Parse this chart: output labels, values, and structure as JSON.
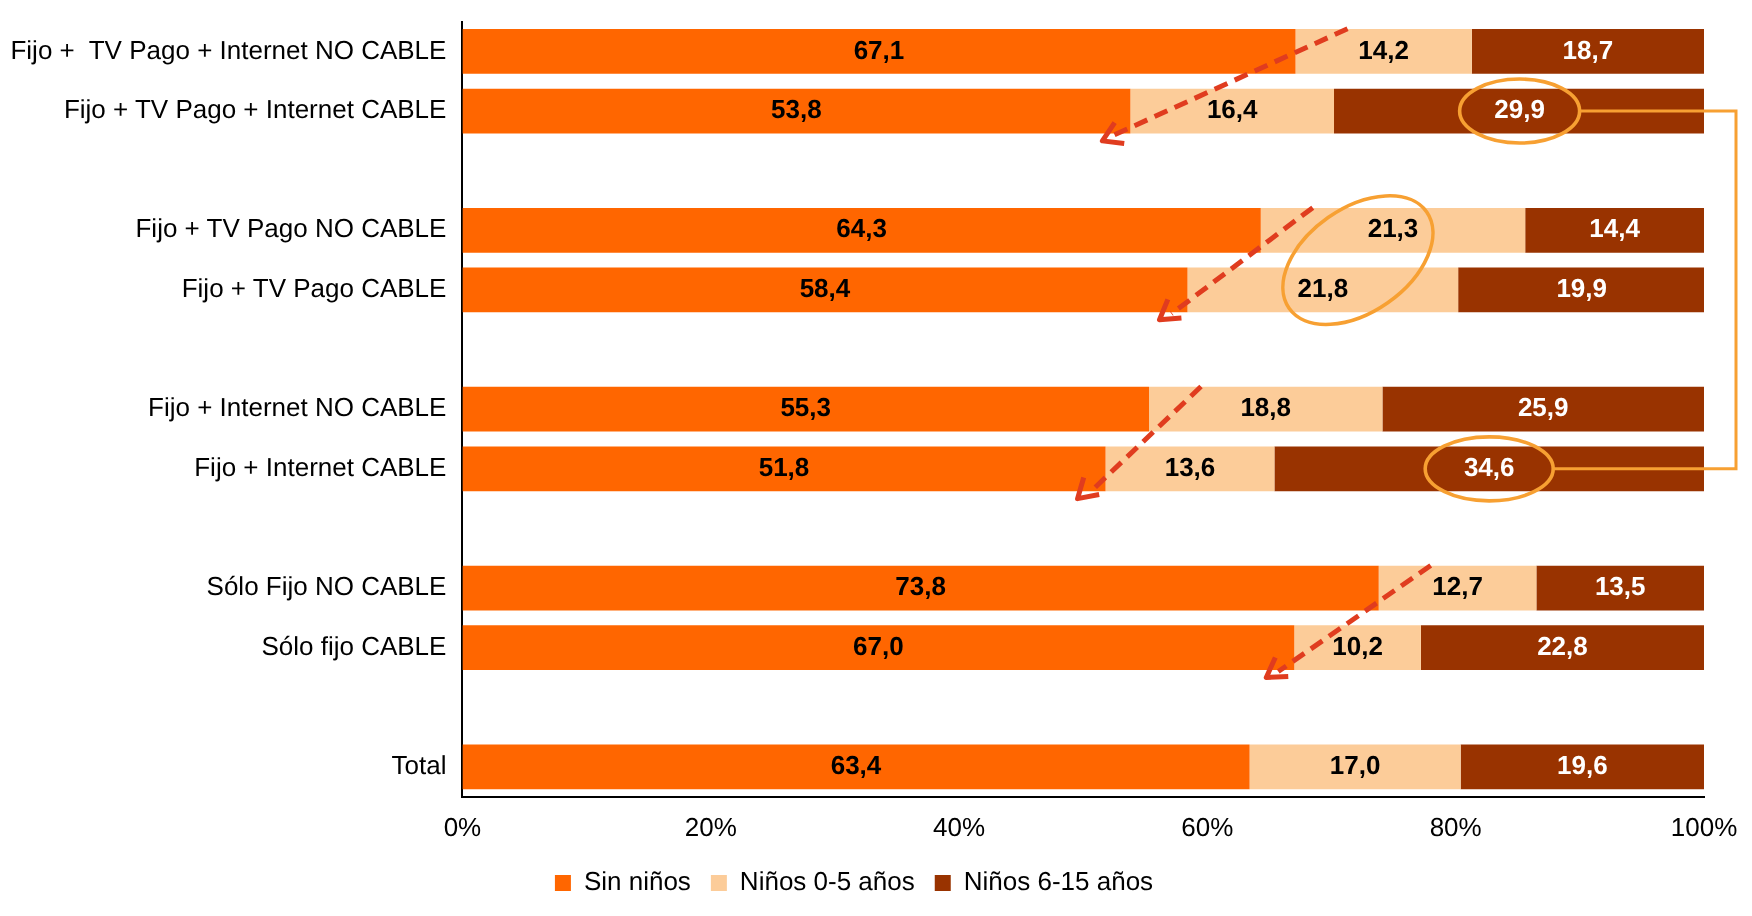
{
  "chart_data": {
    "type": "bar",
    "orientation": "horizontal",
    "stacked": true,
    "categories": [
      "Fijo +  TV Pago + Internet NO CABLE",
      "Fijo + TV Pago + Internet CABLE",
      null,
      "Fijo + TV Pago NO CABLE",
      "Fijo + TV Pago CABLE",
      null,
      "Fijo + Internet NO CABLE",
      "Fijo + Internet CABLE",
      null,
      "Sólo Fijo NO CABLE",
      "Sólo fijo CABLE",
      null,
      "Total"
    ],
    "series": [
      {
        "name": "Sin niños",
        "color": "#ff6600",
        "values": [
          67.1,
          53.8,
          null,
          64.3,
          58.4,
          null,
          55.3,
          51.8,
          null,
          73.8,
          67.0,
          null,
          63.4
        ],
        "value_labels": [
          "67,1",
          "53,8",
          null,
          "64,3",
          "58,4",
          null,
          "55,3",
          "51,8",
          null,
          "73,8",
          "67,0",
          null,
          "63,4"
        ]
      },
      {
        "name": "Niños 0-5 años",
        "color": "#fccc99",
        "values": [
          14.2,
          16.4,
          null,
          21.3,
          21.8,
          null,
          18.8,
          13.6,
          null,
          12.7,
          10.2,
          null,
          17.0
        ],
        "value_labels": [
          "14,2",
          "16,4",
          null,
          "21,3",
          "21,8",
          null,
          "18,8",
          "13,6",
          null,
          "12,7",
          "10,2",
          null,
          "17,0"
        ]
      },
      {
        "name": "Niños 6-15 años",
        "color": "#993300",
        "values": [
          18.7,
          29.9,
          null,
          14.4,
          19.9,
          null,
          25.9,
          34.6,
          null,
          13.5,
          22.8,
          null,
          19.6
        ],
        "value_labels": [
          "18,7",
          "29,9",
          null,
          "14,4",
          "19,9",
          null,
          "25,9",
          "34,6",
          null,
          "13,5",
          "22,8",
          null,
          "19,6"
        ]
      }
    ],
    "xlim": [
      0,
      100
    ],
    "xticks": [
      {
        "value": 0,
        "label": "0%"
      },
      {
        "value": 20,
        "label": "20%"
      },
      {
        "value": 40,
        "label": "40%"
      },
      {
        "value": 60,
        "label": "60%"
      },
      {
        "value": 80,
        "label": "80%"
      },
      {
        "value": 100,
        "label": "100%"
      }
    ],
    "grid": false,
    "legend": "bottom"
  }
}
